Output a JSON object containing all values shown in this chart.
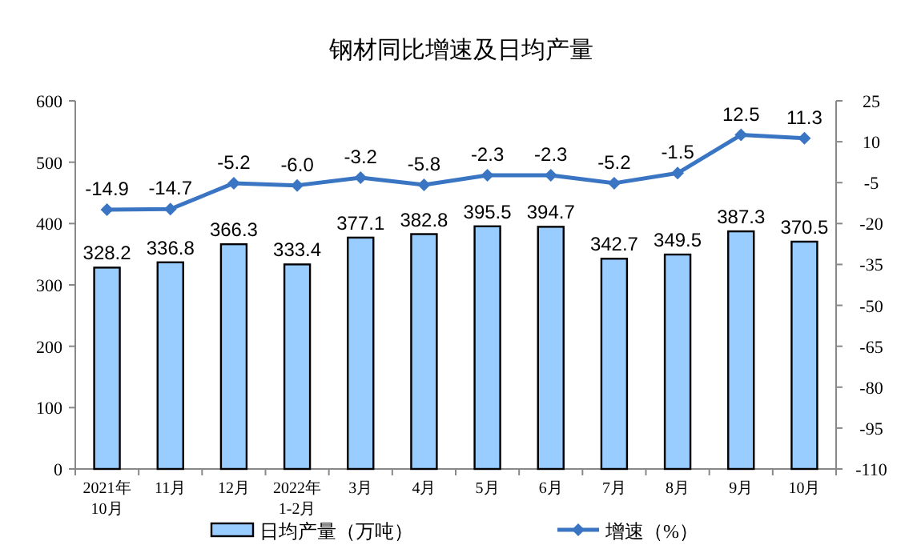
{
  "chart_data": {
    "type": "bar",
    "title": "钢材同比增速及日均产量",
    "categories": [
      "2021年\n10月",
      "11月",
      "12月",
      "2022年\n1-2月",
      "3月",
      "4月",
      "5月",
      "6月",
      "7月",
      "8月",
      "9月",
      "10月"
    ],
    "series": [
      {
        "name": "日均产量（万吨）",
        "color": "#99ccff",
        "values": [
          328.2,
          336.8,
          366.3,
          333.4,
          377.1,
          382.8,
          395.5,
          394.7,
          342.7,
          349.5,
          387.3,
          370.5
        ]
      },
      {
        "name": "增速（%）",
        "type": "line",
        "axis": "y2",
        "color": "#3a75c4",
        "marker": "diamond",
        "values": [
          -14.9,
          -14.7,
          -5.2,
          -6.0,
          -3.2,
          -5.8,
          -2.3,
          -2.3,
          -5.2,
          -1.5,
          12.5,
          11.3
        ],
        "value_labels": [
          "-14.9",
          "-14.7",
          "-5.2",
          "-6.0",
          "-3.2",
          "-5.8",
          "-2.3",
          "-2.3",
          "-5.2",
          "-1.5",
          "12.5",
          "11.3"
        ]
      }
    ],
    "ylim": [
      0,
      600
    ],
    "yticks": [
      0,
      100,
      200,
      300,
      400,
      500,
      600
    ],
    "y2lim": [
      -110,
      25
    ],
    "y2ticks": [
      -110,
      -95,
      -80,
      -65,
      -50,
      -35,
      -20,
      -5,
      10,
      25
    ],
    "data_labels": true,
    "legend": "bottom",
    "grid": false
  }
}
